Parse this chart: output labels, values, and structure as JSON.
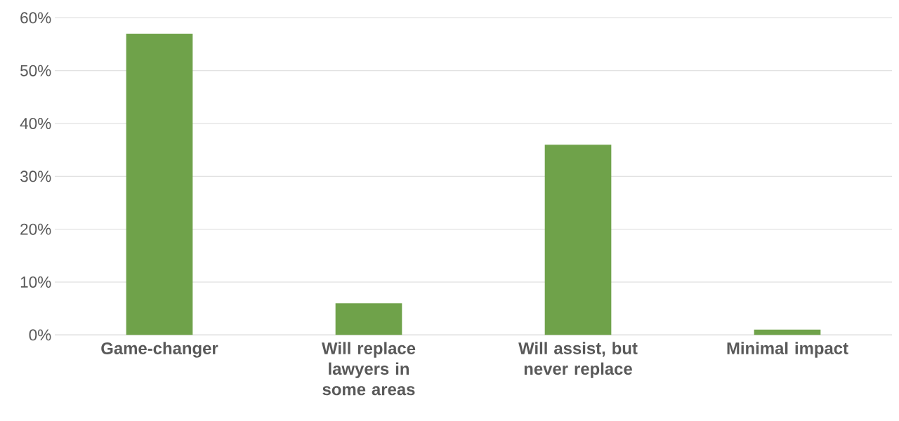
{
  "chart_data": {
    "type": "bar",
    "categories": [
      "Game-changer",
      "Will replace lawyers in some areas",
      "Will assist, but never replace",
      "Minimal impact"
    ],
    "values": [
      57,
      6,
      36,
      1
    ],
    "color": "#6fa24a",
    "ylim": [
      0,
      60
    ],
    "yticks": [
      {
        "value": 0,
        "label": "0%"
      },
      {
        "value": 10,
        "label": "10%"
      },
      {
        "value": 20,
        "label": "20%"
      },
      {
        "value": 30,
        "label": "30%"
      },
      {
        "value": 40,
        "label": "40%"
      },
      {
        "value": 50,
        "label": "50%"
      },
      {
        "value": 60,
        "label": "60%"
      }
    ],
    "grid": "y"
  }
}
